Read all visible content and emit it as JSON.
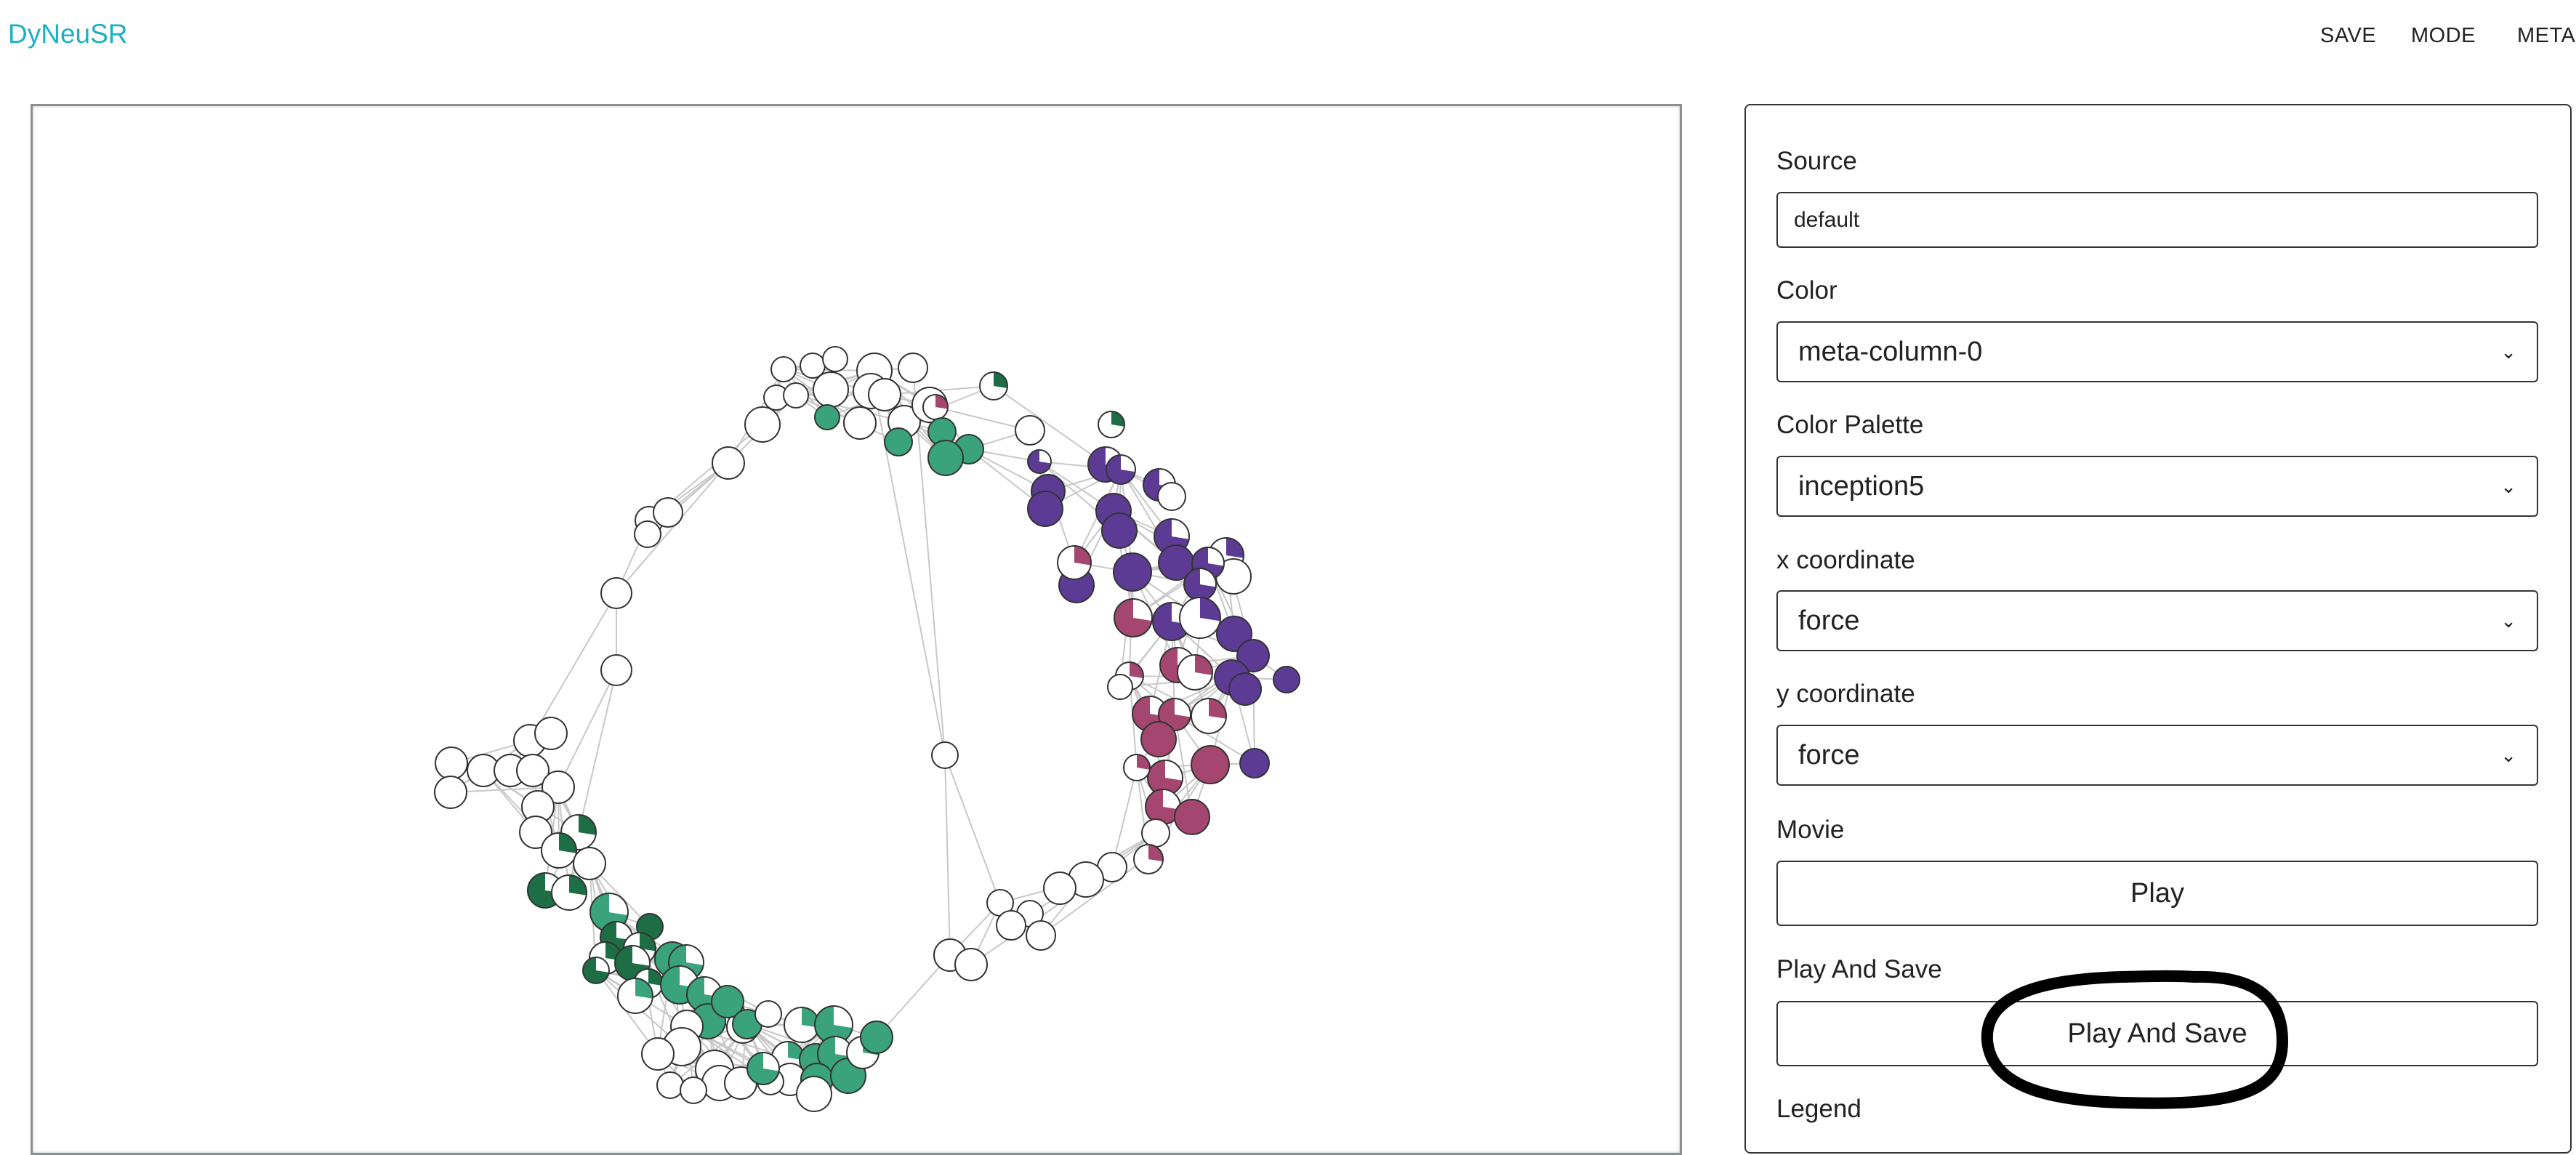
{
  "app": {
    "brand": "DyNeuSR",
    "nav": [
      {
        "label": "SAVE"
      },
      {
        "label": "MODE"
      },
      {
        "label": "META"
      }
    ]
  },
  "panel": {
    "source_label": "Source",
    "source_value": "default",
    "color_label": "Color",
    "color_value": "meta-column-0",
    "palette_label": "Color Palette",
    "palette_value": "inception5",
    "x_label": "x coordinate",
    "x_value": "force",
    "y_label": "y coordinate",
    "y_value": "force",
    "movie_label": "Movie",
    "play_button": "Play",
    "play_save_label": "Play And Save",
    "play_save_button": "Play And Save",
    "legend_label": "Legend"
  },
  "colors": {
    "brand": "#1ab0c4",
    "green_dark": "#1d6e45",
    "green": "#3aa37b",
    "purple": "#5d3b94",
    "magenta": "#a4466f",
    "annotation": "#000000"
  },
  "icons": {
    "select_chevron": "chevron-down-icon"
  }
}
